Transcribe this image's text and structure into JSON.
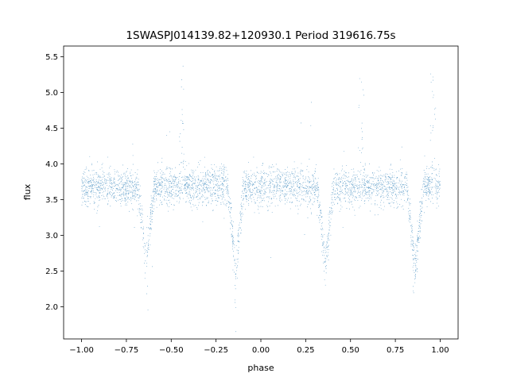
{
  "chart_data": {
    "type": "scatter",
    "title": "1SWASPJ014139.82+120930.1 Period 319616.75s",
    "xlabel": "phase",
    "ylabel": "flux",
    "xlim": [
      -1.1,
      1.1
    ],
    "ylim": [
      1.55,
      5.65
    ],
    "x_ticks": [
      -1.0,
      -0.75,
      -0.5,
      -0.25,
      0.0,
      0.25,
      0.5,
      0.75,
      1.0
    ],
    "x_tick_labels": [
      "−1.00",
      "−0.75",
      "−0.50",
      "−0.25",
      "0.00",
      "0.25",
      "0.50",
      "0.75",
      "1.00"
    ],
    "y_ticks": [
      2.0,
      2.5,
      3.0,
      3.5,
      4.0,
      4.5,
      5.0,
      5.5
    ],
    "y_tick_labels": [
      "2.0",
      "2.5",
      "3.0",
      "3.5",
      "4.0",
      "4.5",
      "5.0",
      "5.5"
    ],
    "grid": false,
    "marker_color": "#1f77b4",
    "series": [
      {
        "baseline_flux": 3.68,
        "baseline_scatter": 0.13,
        "eclipses": [
          {
            "phase": -0.64,
            "min_flux": 2.6,
            "half_width": 0.045
          },
          {
            "phase": -0.14,
            "min_flux": 2.5,
            "half_width": 0.045
          },
          {
            "phase": 0.36,
            "min_flux": 2.6,
            "half_width": 0.045
          },
          {
            "phase": 0.86,
            "min_flux": 2.5,
            "half_width": 0.045
          }
        ],
        "flares": [
          {
            "phase": -0.44,
            "peak_flux": 5.2
          },
          {
            "phase": 0.56,
            "peak_flux": 5.2
          },
          {
            "phase": 0.96,
            "peak_flux": 5.2
          }
        ],
        "point_count": 9000
      }
    ]
  }
}
